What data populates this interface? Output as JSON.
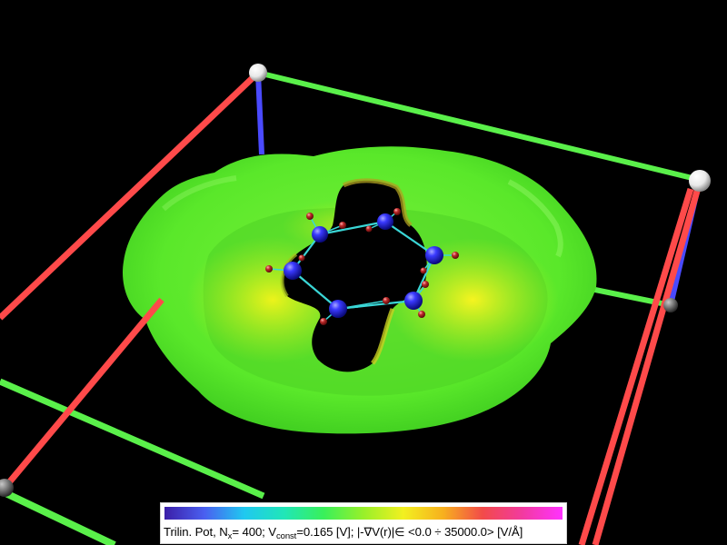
{
  "legend": {
    "prefix": "Trilin. Pot, N",
    "n_sub": "x",
    "n_value": "= 400; V",
    "v_sub": "const",
    "v_value": "=0.165 [V];  |-∇V(r)|∈ <0.0 ÷ 35000.0> [V/Å]"
  },
  "colors": {
    "background": "#000000",
    "surface_main": "#55e52a",
    "surface_yellow": "#e8f21a",
    "atom_large": "#2020ff",
    "atom_small": "#b02020",
    "bond": "#3ad6d6",
    "box_red": "#ff4a4a",
    "box_green": "#5af04a",
    "box_blue": "#4a4aff",
    "vertex": "#f2f2f2"
  }
}
